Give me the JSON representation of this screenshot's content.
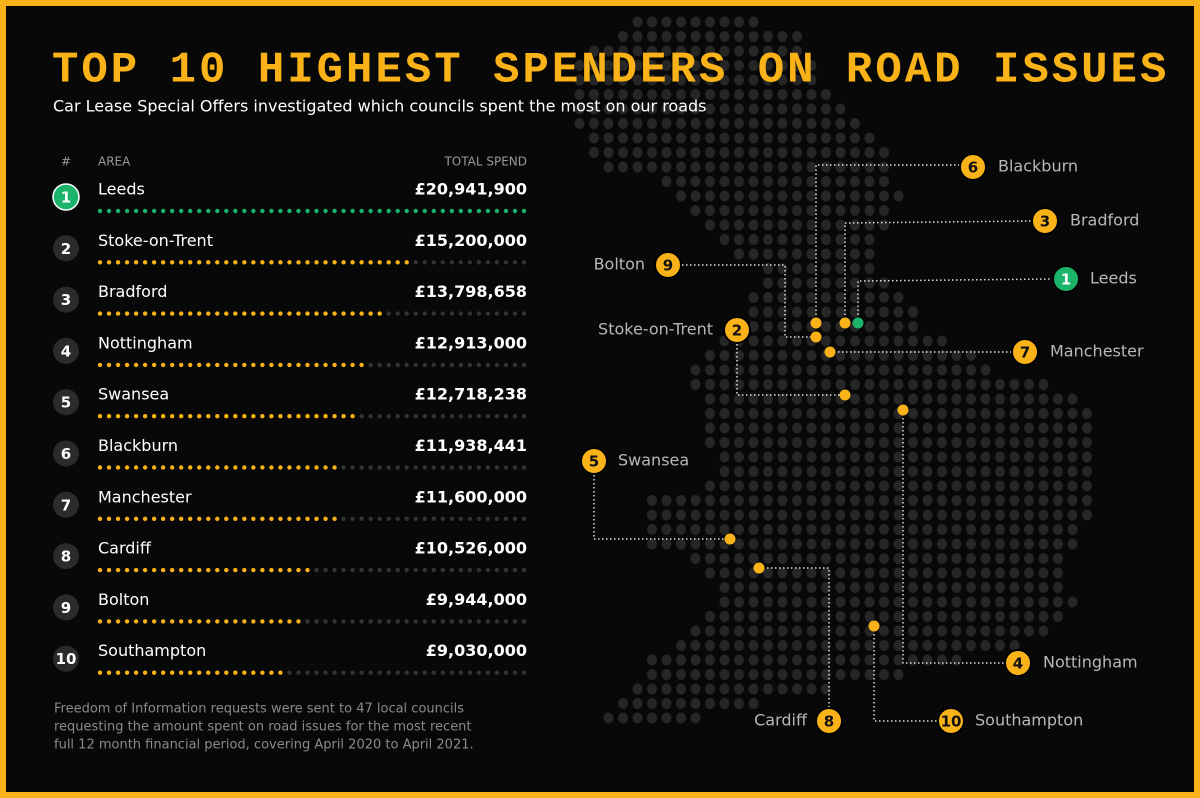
{
  "title": "TOP 10 HIGHEST SPENDERS ON ROAD ISSUES",
  "subtitle": "Car Lease Special Offers investigated which councils spent the most on our roads",
  "table": {
    "columns": [
      "#",
      "AREA",
      "TOTAL SPEND"
    ],
    "rows": [
      {
        "rank": 1,
        "area": "Leeds",
        "spend": {
          "value": 20941900,
          "label": "£20,941,900"
        }
      },
      {
        "rank": 2,
        "area": "Stoke-on-Trent",
        "spend": {
          "value": 15200000,
          "label": "£15,200,000"
        }
      },
      {
        "rank": 3,
        "area": "Bradford",
        "spend": {
          "value": 13798658,
          "label": "£13,798,658"
        }
      },
      {
        "rank": 4,
        "area": "Nottingham",
        "spend": {
          "value": 12913000,
          "label": "£12,913,000"
        }
      },
      {
        "rank": 5,
        "area": "Swansea",
        "spend": {
          "value": 12718238,
          "label": "£12,718,238"
        }
      },
      {
        "rank": 6,
        "area": "Blackburn",
        "spend": {
          "value": 11938441,
          "label": "£11,938,441"
        }
      },
      {
        "rank": 7,
        "area": "Manchester",
        "spend": {
          "value": 11600000,
          "label": "£11,600,000"
        }
      },
      {
        "rank": 8,
        "area": "Cardiff",
        "spend": {
          "value": 10526000,
          "label": "£10,526,000"
        }
      },
      {
        "rank": 9,
        "area": "Bolton",
        "spend": {
          "value": 9944000,
          "label": "£9,944,000"
        }
      },
      {
        "rank": 10,
        "area": "Southampton",
        "spend": {
          "value": 9030000,
          "label": "£9,030,000"
        }
      }
    ]
  },
  "footnote": [
    "Freedom of Information requests were sent to 47 local councils",
    "requesting the amount spent on road issues for the most recent",
    "full 12 month financial period, covering April 2020 to April 2021."
  ]
}
